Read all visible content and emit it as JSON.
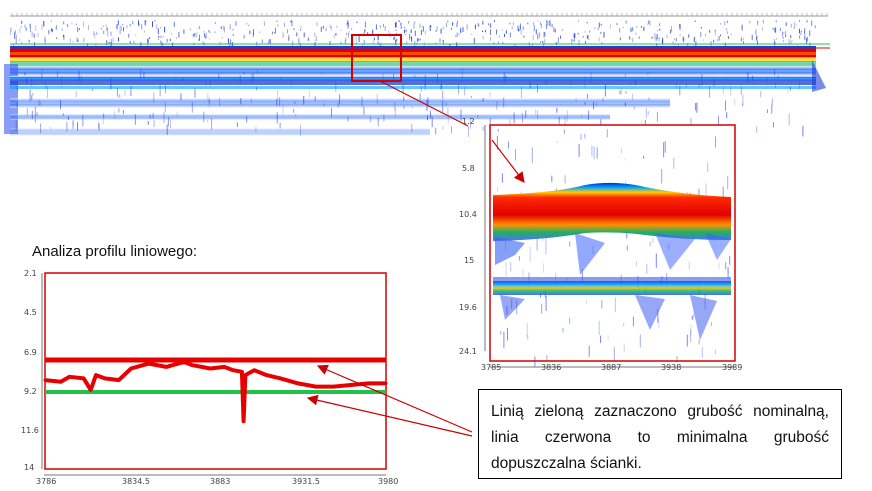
{
  "heading": "Analiza profilu liniowego:",
  "note": "Linią zieloną zaznaczono grubość nominalną, linia czerwona to minimalna grubość dopuszczalna ścianki.",
  "zoom_panel": {
    "y_ticks": [
      "1.2",
      "5.8",
      "10.4",
      "15",
      "19.6",
      "24.1"
    ],
    "x_ticks": [
      "3785",
      "3836",
      "3887",
      "3938",
      "3989"
    ]
  },
  "profile_chart": {
    "y_ticks": [
      "2.1",
      "4.5",
      "6.9",
      "9.2",
      "11.6",
      "14"
    ],
    "x_ticks": [
      "3786",
      "3834.5",
      "3883",
      "3931.5",
      "3980"
    ]
  },
  "colors": {
    "frame_red": "#d40000",
    "min_line_red": "#e80000",
    "nominal_line_green": "#22c24a",
    "arrow_red": "#cc0000",
    "scan_blue": "#1a3fd6"
  },
  "chart_data": {
    "type": "line",
    "x_range": [
      3786,
      3980
    ],
    "ylim": [
      2.1,
      14
    ],
    "y_inverted": true,
    "series": [
      {
        "values": [
          [
            3786,
            8.6
          ],
          [
            3795,
            8.7
          ],
          [
            3800,
            8.4
          ],
          [
            3808,
            8.5
          ],
          [
            3812,
            9.2
          ],
          [
            3815,
            8.3
          ],
          [
            3820,
            8.5
          ],
          [
            3828,
            8.6
          ],
          [
            3835,
            7.9
          ],
          [
            3845,
            7.6
          ],
          [
            3855,
            7.8
          ],
          [
            3865,
            7.5
          ],
          [
            3870,
            7.7
          ],
          [
            3880,
            7.9
          ],
          [
            3888,
            7.8
          ],
          [
            3893,
            8.0
          ],
          [
            3898,
            8.1
          ],
          [
            3899,
            11.1
          ],
          [
            3900,
            8.3
          ],
          [
            3905,
            8.0
          ],
          [
            3912,
            8.3
          ],
          [
            3920,
            8.5
          ],
          [
            3930,
            8.8
          ],
          [
            3940,
            9.0
          ],
          [
            3950,
            9.0
          ],
          [
            3960,
            8.9
          ],
          [
            3970,
            8.8
          ],
          [
            3980,
            8.8
          ]
        ]
      }
    ]
  }
}
